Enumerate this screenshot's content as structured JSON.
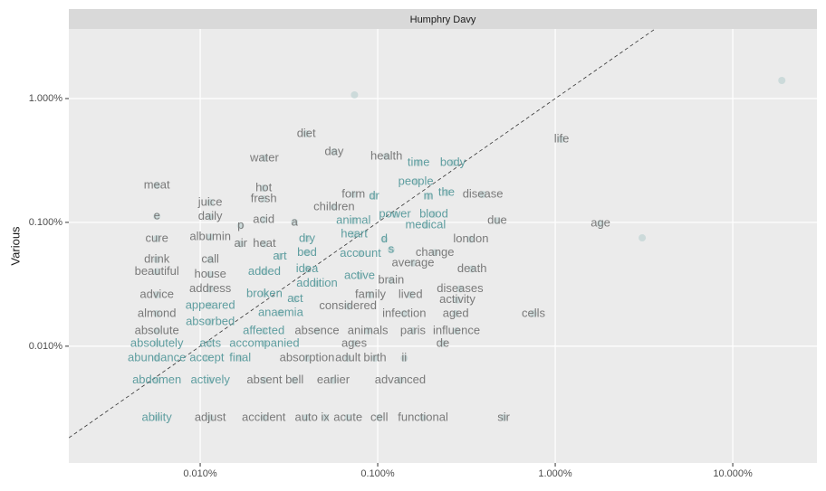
{
  "chart_data": {
    "type": "scatter",
    "title": "Humphry Davy",
    "ylabel": "Various",
    "log_x": true,
    "log_y": true,
    "grid": true,
    "identity_line": true,
    "point_color": "#5f9ea0",
    "label_color": "#7a7a7a",
    "near_label_color": "#5f9ea0",
    "xlim": [
      0.00182,
      29.8
    ],
    "ylim": [
      0.00114,
      3.65
    ],
    "xticks": [
      {
        "value": 0.01,
        "label": "0.010%"
      },
      {
        "value": 0.1,
        "label": "0.100%"
      },
      {
        "value": 1,
        "label": "1.000%"
      },
      {
        "value": 10,
        "label": "10.000%"
      }
    ],
    "yticks": [
      {
        "value": 0.01,
        "label": "0.010%"
      },
      {
        "value": 0.1,
        "label": "0.100%"
      },
      {
        "value": 1,
        "label": "1.000%"
      }
    ],
    "points": [
      {
        "x": 18.9,
        "y": 1.4
      },
      {
        "x": 0.074,
        "y": 1.07
      },
      {
        "x": 3.09,
        "y": 0.075
      }
    ],
    "words": [
      {
        "word": "diet",
        "x": 0.0396,
        "y": 0.519
      },
      {
        "word": "day",
        "x": 0.0568,
        "y": 0.371
      },
      {
        "word": "water",
        "x": 0.023,
        "y": 0.33
      },
      {
        "word": "health",
        "x": 0.112,
        "y": 0.341
      },
      {
        "word": "time",
        "x": 0.17,
        "y": 0.303
      },
      {
        "word": "body",
        "x": 0.265,
        "y": 0.303
      },
      {
        "word": "life",
        "x": 1.086,
        "y": 0.469
      },
      {
        "word": "meat",
        "x": 0.0057,
        "y": 0.199
      },
      {
        "word": "hot",
        "x": 0.0228,
        "y": 0.189
      },
      {
        "word": "fresh",
        "x": 0.0228,
        "y": 0.155
      },
      {
        "word": "juice",
        "x": 0.0114,
        "y": 0.145
      },
      {
        "word": "form",
        "x": 0.073,
        "y": 0.168
      },
      {
        "word": "dr",
        "x": 0.0955,
        "y": 0.163
      },
      {
        "word": "people",
        "x": 0.164,
        "y": 0.213
      },
      {
        "word": "m",
        "x": 0.193,
        "y": 0.163
      },
      {
        "word": "the",
        "x": 0.244,
        "y": 0.174
      },
      {
        "word": "disease",
        "x": 0.391,
        "y": 0.168
      },
      {
        "word": "children",
        "x": 0.0568,
        "y": 0.133
      },
      {
        "word": "e",
        "x": 0.0057,
        "y": 0.112
      },
      {
        "word": "daily",
        "x": 0.0114,
        "y": 0.111
      },
      {
        "word": "p",
        "x": 0.0169,
        "y": 0.094
      },
      {
        "word": "acid",
        "x": 0.0228,
        "y": 0.105
      },
      {
        "word": "a",
        "x": 0.034,
        "y": 0.1
      },
      {
        "word": "animal",
        "x": 0.073,
        "y": 0.103
      },
      {
        "word": "power",
        "x": 0.125,
        "y": 0.116
      },
      {
        "word": "blood",
        "x": 0.207,
        "y": 0.116
      },
      {
        "word": "medical",
        "x": 0.186,
        "y": 0.095
      },
      {
        "word": "due",
        "x": 0.471,
        "y": 0.103
      },
      {
        "word": "age",
        "x": 1.8,
        "y": 0.098
      },
      {
        "word": "heart",
        "x": 0.0737,
        "y": 0.08
      },
      {
        "word": "cure",
        "x": 0.0057,
        "y": 0.074
      },
      {
        "word": "albumin",
        "x": 0.0114,
        "y": 0.076
      },
      {
        "word": "air",
        "x": 0.0169,
        "y": 0.067
      },
      {
        "word": "heat",
        "x": 0.023,
        "y": 0.067
      },
      {
        "word": "dry",
        "x": 0.04,
        "y": 0.074
      },
      {
        "word": "london",
        "x": 0.335,
        "y": 0.073
      },
      {
        "word": "d",
        "x": 0.109,
        "y": 0.073
      },
      {
        "word": "s",
        "x": 0.119,
        "y": 0.06
      },
      {
        "word": "drink",
        "x": 0.0057,
        "y": 0.05
      },
      {
        "word": "call",
        "x": 0.0114,
        "y": 0.05
      },
      {
        "word": "art",
        "x": 0.0281,
        "y": 0.053
      },
      {
        "word": "bed",
        "x": 0.04,
        "y": 0.057
      },
      {
        "word": "account",
        "x": 0.08,
        "y": 0.056
      },
      {
        "word": "change",
        "x": 0.21,
        "y": 0.057
      },
      {
        "word": "average",
        "x": 0.158,
        "y": 0.047
      },
      {
        "word": "beautiful",
        "x": 0.0057,
        "y": 0.04
      },
      {
        "word": "house",
        "x": 0.0114,
        "y": 0.038
      },
      {
        "word": "added",
        "x": 0.023,
        "y": 0.04
      },
      {
        "word": "idea",
        "x": 0.04,
        "y": 0.042
      },
      {
        "word": "active",
        "x": 0.079,
        "y": 0.037
      },
      {
        "word": "death",
        "x": 0.34,
        "y": 0.042
      },
      {
        "word": "brain",
        "x": 0.119,
        "y": 0.034
      },
      {
        "word": "addition",
        "x": 0.0455,
        "y": 0.032
      },
      {
        "word": "advice",
        "x": 0.0057,
        "y": 0.026
      },
      {
        "word": "address",
        "x": 0.0114,
        "y": 0.029
      },
      {
        "word": "broken",
        "x": 0.023,
        "y": 0.0265
      },
      {
        "word": "act",
        "x": 0.0343,
        "y": 0.024
      },
      {
        "word": "family",
        "x": 0.091,
        "y": 0.026
      },
      {
        "word": "lived",
        "x": 0.153,
        "y": 0.026
      },
      {
        "word": "diseases",
        "x": 0.291,
        "y": 0.029
      },
      {
        "word": "activity",
        "x": 0.281,
        "y": 0.0236
      },
      {
        "word": "appeared",
        "x": 0.0114,
        "y": 0.0213
      },
      {
        "word": "considered",
        "x": 0.068,
        "y": 0.021
      },
      {
        "word": "almond",
        "x": 0.0057,
        "y": 0.0183
      },
      {
        "word": "anaemia",
        "x": 0.0284,
        "y": 0.0186
      },
      {
        "word": "infection",
        "x": 0.141,
        "y": 0.0183
      },
      {
        "word": "aged",
        "x": 0.275,
        "y": 0.0183
      },
      {
        "word": "cells",
        "x": 0.754,
        "y": 0.0183
      },
      {
        "word": "absorbed",
        "x": 0.0114,
        "y": 0.0157
      },
      {
        "word": "absolute",
        "x": 0.0057,
        "y": 0.0133
      },
      {
        "word": "affected",
        "x": 0.0228,
        "y": 0.0133
      },
      {
        "word": "absence",
        "x": 0.0455,
        "y": 0.0133
      },
      {
        "word": "animals",
        "x": 0.088,
        "y": 0.0133
      },
      {
        "word": "paris",
        "x": 0.158,
        "y": 0.0133
      },
      {
        "word": "influence",
        "x": 0.278,
        "y": 0.0133
      },
      {
        "word": "absolutely",
        "x": 0.0057,
        "y": 0.0105
      },
      {
        "word": "acts",
        "x": 0.0114,
        "y": 0.0105
      },
      {
        "word": "accompanied",
        "x": 0.023,
        "y": 0.0105
      },
      {
        "word": "ages",
        "x": 0.0737,
        "y": 0.0105
      },
      {
        "word": "de",
        "x": 0.233,
        "y": 0.0105
      },
      {
        "word": "abundance",
        "x": 0.0057,
        "y": 0.008
      },
      {
        "word": "accept",
        "x": 0.0109,
        "y": 0.008
      },
      {
        "word": "final",
        "x": 0.0168,
        "y": 0.008
      },
      {
        "word": "absorption",
        "x": 0.04,
        "y": 0.008
      },
      {
        "word": "adult",
        "x": 0.068,
        "y": 0.008
      },
      {
        "word": "birth",
        "x": 0.0965,
        "y": 0.008
      },
      {
        "word": "ii",
        "x": 0.141,
        "y": 0.008
      },
      {
        "word": "abdomen",
        "x": 0.0057,
        "y": 0.0053
      },
      {
        "word": "actively",
        "x": 0.0114,
        "y": 0.0053
      },
      {
        "word": "absent",
        "x": 0.023,
        "y": 0.0053
      },
      {
        "word": "bell",
        "x": 0.034,
        "y": 0.0053
      },
      {
        "word": "earlier",
        "x": 0.0562,
        "y": 0.0053
      },
      {
        "word": "advanced",
        "x": 0.134,
        "y": 0.0053
      },
      {
        "word": "ability",
        "x": 0.0057,
        "y": 0.00265
      },
      {
        "word": "adjust",
        "x": 0.0114,
        "y": 0.00265
      },
      {
        "word": "accident",
        "x": 0.0228,
        "y": 0.00265
      },
      {
        "word": "auto",
        "x": 0.0396,
        "y": 0.00265
      },
      {
        "word": "ix",
        "x": 0.0506,
        "y": 0.00265
      },
      {
        "word": "acute",
        "x": 0.068,
        "y": 0.00265
      },
      {
        "word": "cell",
        "x": 0.102,
        "y": 0.00265
      },
      {
        "word": "functional",
        "x": 0.18,
        "y": 0.00265
      },
      {
        "word": "sir",
        "x": 0.512,
        "y": 0.00265
      }
    ]
  }
}
